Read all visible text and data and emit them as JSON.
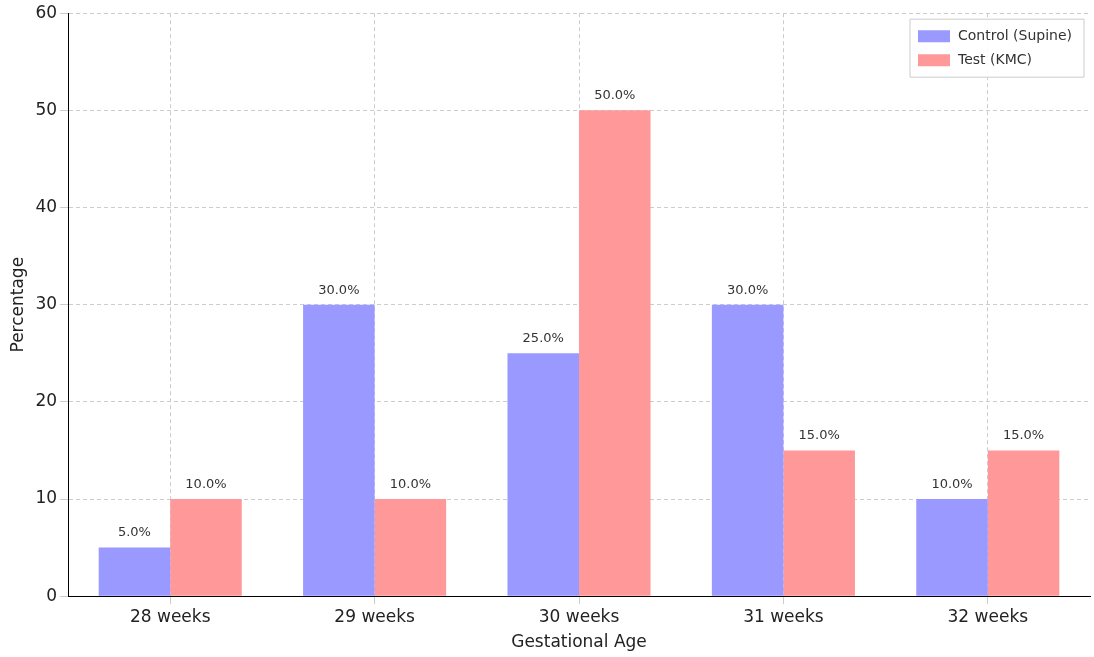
{
  "chart_data": {
    "type": "bar",
    "xlabel": "Gestational Age",
    "ylabel": "Percentage",
    "categories": [
      "28 weeks",
      "29 weeks",
      "30 weeks",
      "31 weeks",
      "32 weeks"
    ],
    "series": [
      {
        "name": "Control (Supine)",
        "color": "#9999ff",
        "values": [
          5,
          30,
          25,
          30,
          10
        ],
        "value_labels": [
          "5.0%",
          "30.0%",
          "25.0%",
          "30.0%",
          "10.0%"
        ]
      },
      {
        "name": "Test (KMC)",
        "color": "#ff9999",
        "values": [
          10,
          10,
          50,
          15,
          15
        ],
        "value_labels": [
          "10.0%",
          "10.0%",
          "50.0%",
          "15.0%",
          "15.0%"
        ]
      }
    ],
    "ylim": [
      0,
      60
    ],
    "yticks": [
      0,
      10,
      20,
      30,
      40,
      50,
      60
    ],
    "grid": true,
    "legend": "top right"
  }
}
